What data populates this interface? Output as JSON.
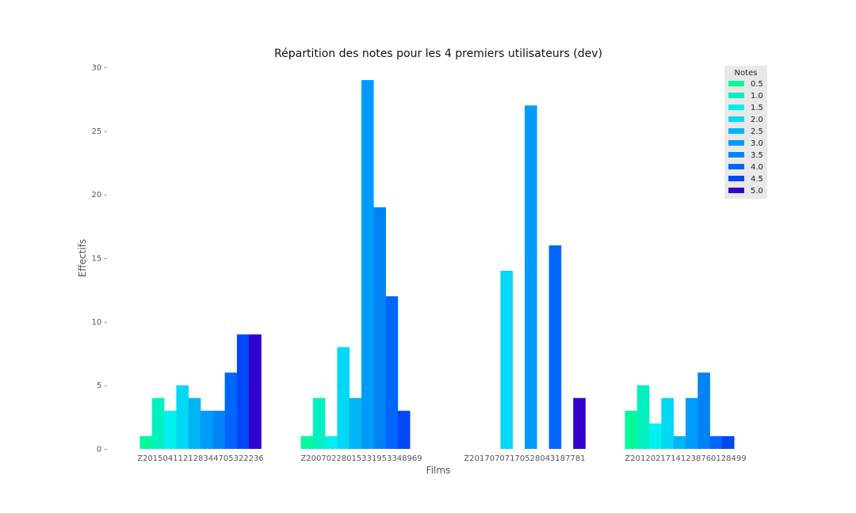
{
  "chart_data": {
    "type": "bar",
    "title": "Répartition des notes pour les 4 premiers utilisateurs (dev)",
    "xlabel": "Films",
    "ylabel": "Effectifs",
    "ylim": [
      0,
      30
    ],
    "yticks": [
      0,
      5,
      10,
      15,
      20,
      25,
      30
    ],
    "grid": false,
    "categories": [
      "Z201504112128344705322236",
      "Z200702280153319533489​69",
      "Z201707071705280431877​81",
      "Z201202171412387601284​99"
    ],
    "legend": {
      "title": "Notes",
      "position": "top-right"
    },
    "series": [
      {
        "name": "0.5",
        "color": "#00fa9a",
        "values": [
          1,
          1,
          0,
          3
        ]
      },
      {
        "name": "1.0",
        "color": "#00f0c0",
        "values": [
          4,
          4,
          0,
          5
        ]
      },
      {
        "name": "1.5",
        "color": "#00f0f0",
        "values": [
          3,
          1,
          0,
          2
        ]
      },
      {
        "name": "2.0",
        "color": "#00d8f5",
        "values": [
          5,
          8,
          14,
          4
        ]
      },
      {
        "name": "2.5",
        "color": "#00b4f5",
        "values": [
          4,
          4,
          0,
          1
        ]
      },
      {
        "name": "3.0",
        "color": "#009cfa",
        "values": [
          3,
          29,
          27,
          4
        ]
      },
      {
        "name": "3.5",
        "color": "#0084f5",
        "values": [
          3,
          19,
          0,
          6
        ]
      },
      {
        "name": "4.0",
        "color": "#0066ff",
        "values": [
          6,
          12,
          16,
          1
        ]
      },
      {
        "name": "4.5",
        "color": "#0048f5",
        "values": [
          9,
          3,
          0,
          1
        ]
      },
      {
        "name": "5.0",
        "color": "#3300cc",
        "values": [
          9,
          0,
          4,
          0
        ]
      }
    ]
  }
}
